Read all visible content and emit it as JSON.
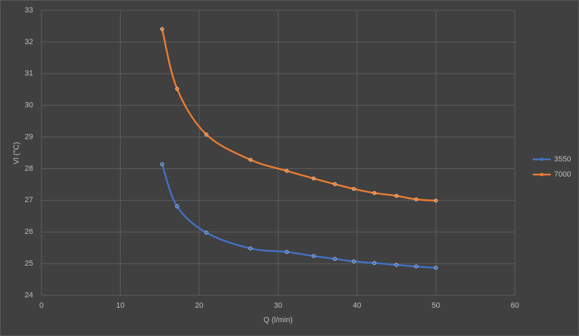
{
  "chart_data": {
    "type": "scatter",
    "x_label": "Q (l/min)",
    "y_label": "Vl (°C)",
    "series": [
      {
        "name": "3550",
        "color": "#4472c4",
        "x": [
          15.3,
          17.2,
          20.9,
          26.5,
          31.1,
          34.5,
          37.2,
          39.6,
          42.2,
          45.0,
          47.5,
          50.0
        ],
        "values": [
          28.14,
          26.81,
          25.98,
          25.48,
          25.37,
          25.24,
          25.15,
          25.07,
          25.02,
          24.96,
          24.91,
          24.87
        ]
      },
      {
        "name": "7000",
        "color": "#ed7d31",
        "x": [
          15.3,
          17.2,
          20.9,
          26.5,
          31.1,
          34.5,
          37.2,
          39.6,
          42.2,
          45.0,
          47.5,
          50.0
        ],
        "values": [
          32.41,
          30.52,
          29.08,
          28.28,
          27.93,
          27.69,
          27.51,
          27.36,
          27.23,
          27.14,
          27.03,
          26.99
        ]
      }
    ],
    "xlim": [
      0,
      60
    ],
    "xticks": [
      0,
      10,
      20,
      30,
      40,
      50,
      60
    ],
    "ylim": [
      24,
      33
    ],
    "yticks": [
      24,
      25,
      26,
      27,
      28,
      29,
      30,
      31,
      32,
      33
    ],
    "grid": true,
    "smooth": true,
    "legend": "right"
  }
}
